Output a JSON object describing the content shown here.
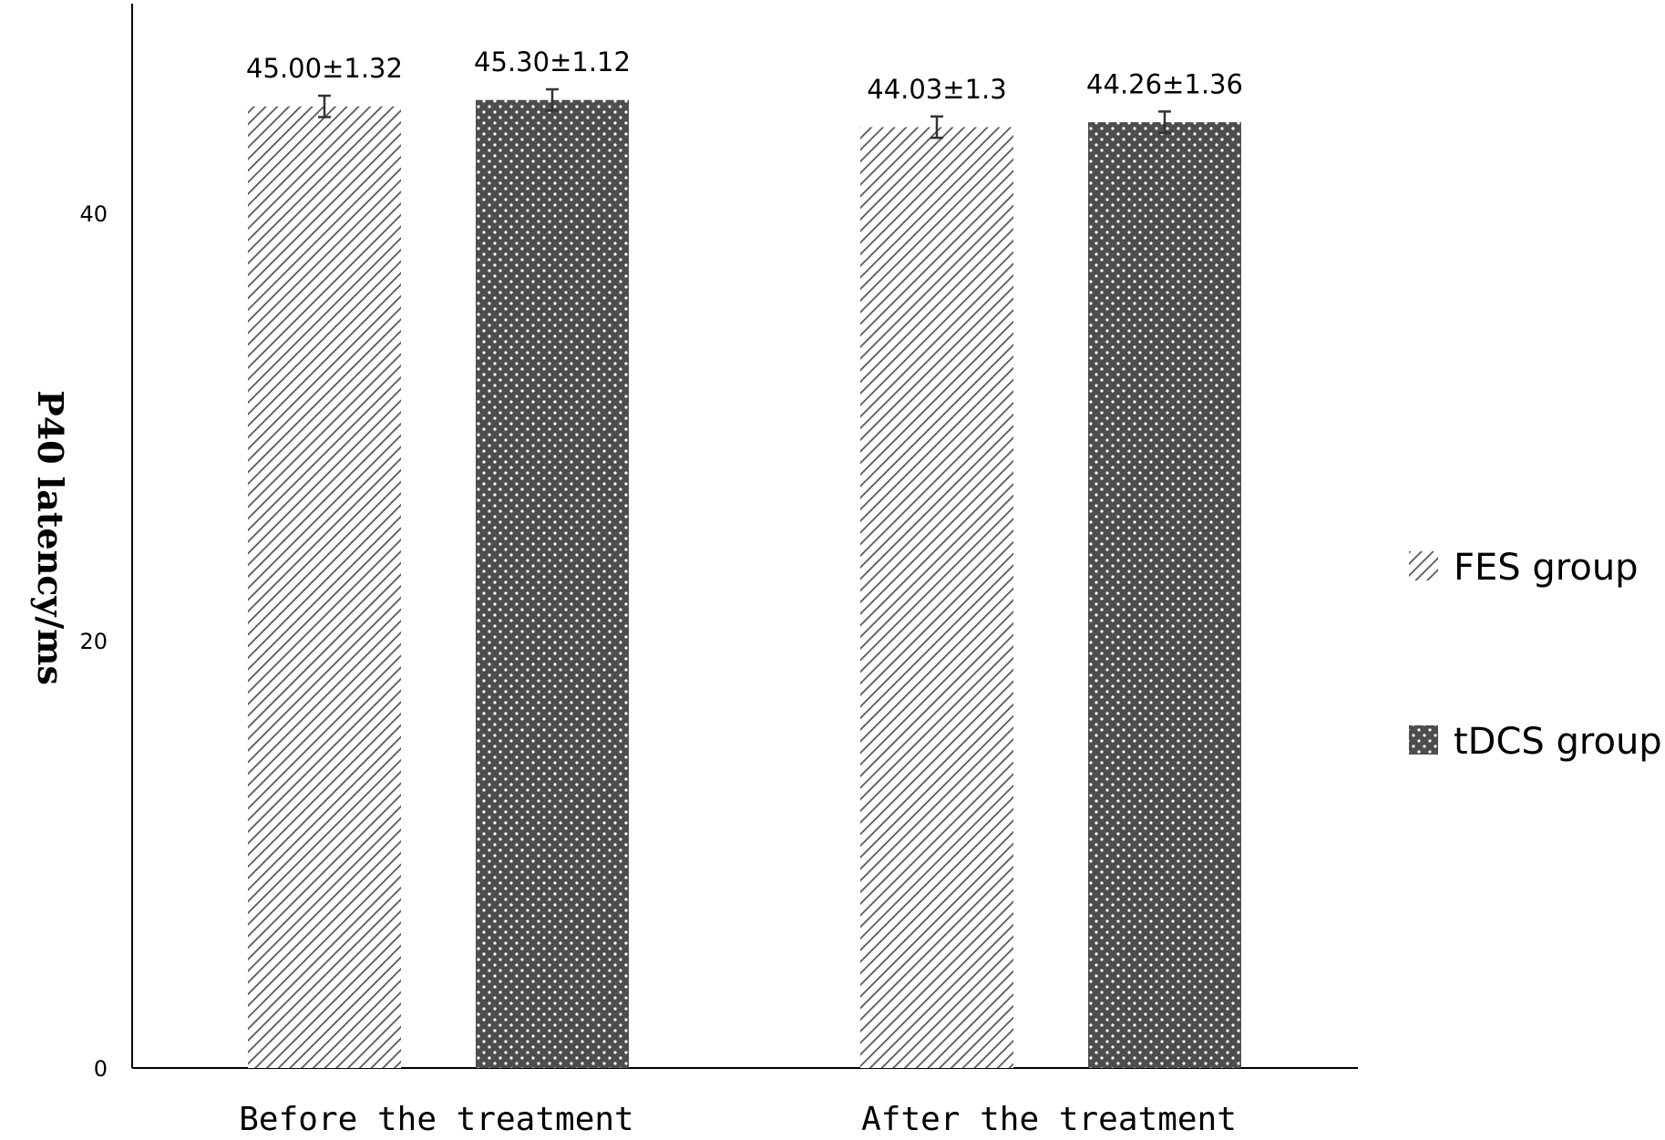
{
  "chart_data": {
    "type": "bar",
    "title": "",
    "xlabel": "",
    "ylabel": "P40 latency/ms",
    "categories": [
      "Before the treatment",
      "After the treatment"
    ],
    "series": [
      {
        "name": "FES group",
        "values": [
          45.0,
          44.03
        ],
        "errors": [
          0.5,
          0.5
        ],
        "labels": [
          "45.00±1.32",
          "44.03±1.3"
        ],
        "pattern": "diagonal-hatch",
        "color": "#555555"
      },
      {
        "name": "tDCS group",
        "values": [
          45.3,
          44.26
        ],
        "errors": [
          0.5,
          0.5
        ],
        "labels": [
          "45.30±1.12",
          "44.26±1.36"
        ],
        "pattern": "dots-on-dark",
        "color": "#4d4d4d"
      }
    ],
    "yticks": [
      0,
      20,
      40
    ],
    "ylim": [
      0,
      50
    ],
    "grid": false,
    "legend_position": "right"
  }
}
